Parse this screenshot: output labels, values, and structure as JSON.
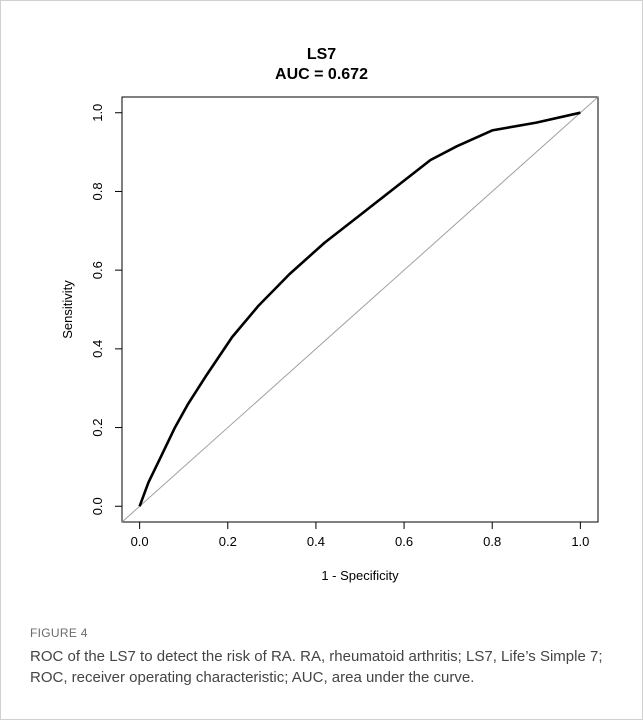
{
  "figure": {
    "label": "FIGURE 4",
    "caption": "ROC of the LS7 to detect the risk of RA. RA, rheumatoid arthritis; LS7, Life’s Simple 7; ROC, receiver operating characteristic; AUC, area under the curve."
  },
  "chart_data": {
    "type": "line",
    "title": "LS7",
    "subtitle": "AUC = 0.672",
    "xlabel": "1 - Specificity",
    "ylabel": "Sensitivity",
    "xlim": [
      -0.04,
      1.04
    ],
    "ylim": [
      -0.04,
      1.04
    ],
    "xticks": [
      0.0,
      0.2,
      0.4,
      0.6,
      0.8,
      1.0
    ],
    "xtick_labels": [
      "0.0",
      "0.2",
      "0.4",
      "0.6",
      "0.8",
      "1.0"
    ],
    "yticks": [
      0.0,
      0.2,
      0.4,
      0.6,
      0.8,
      1.0
    ],
    "ytick_labels": [
      "0.0",
      "0.2",
      "0.4",
      "0.6",
      "0.8",
      "1.0"
    ],
    "grid": false,
    "series": [
      {
        "values_x": [
          0.0,
          0.02,
          0.05,
          0.08,
          0.11,
          0.15,
          0.21,
          0.27,
          0.34,
          0.42,
          0.5,
          0.58,
          0.66,
          0.72,
          0.8,
          0.9,
          1.0
        ],
        "values_y": [
          0.0,
          0.06,
          0.13,
          0.2,
          0.26,
          0.33,
          0.43,
          0.51,
          0.59,
          0.67,
          0.74,
          0.81,
          0.88,
          0.915,
          0.955,
          0.975,
          1.0
        ],
        "color": "#000000"
      }
    ],
    "reference_line": {
      "from": [
        -0.04,
        -0.04
      ],
      "to": [
        1.04,
        1.04
      ],
      "color": "#a0a0a0"
    }
  }
}
